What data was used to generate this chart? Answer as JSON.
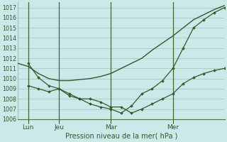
{
  "background_color": "#cce8e8",
  "grid_color": "#a0c0c0",
  "line_color": "#2a5e2a",
  "xlabel": "Pression niveau de la mer( hPa )",
  "ylim": [
    1006,
    1017.5
  ],
  "ytick_vals": [
    1006,
    1007,
    1008,
    1009,
    1010,
    1011,
    1012,
    1013,
    1014,
    1015,
    1016,
    1017
  ],
  "xlim": [
    0,
    20
  ],
  "x_tick_labels": [
    "Lun",
    "Jeu",
    "Mar",
    "Mer"
  ],
  "x_tick_positions": [
    1,
    4,
    9,
    15
  ],
  "x_vline_positions": [
    1,
    4,
    9,
    15
  ],
  "smooth_line_x": [
    0,
    1,
    2,
    3,
    4,
    5,
    6,
    7,
    8,
    9,
    10,
    11,
    12,
    13,
    14,
    15,
    16,
    17,
    18,
    19,
    20
  ],
  "smooth_line_y": [
    1011.5,
    1011.2,
    1010.5,
    1010.0,
    1009.8,
    1009.8,
    1009.9,
    1010.0,
    1010.2,
    1010.5,
    1011.0,
    1011.5,
    1012.0,
    1012.8,
    1013.5,
    1014.2,
    1015.0,
    1015.8,
    1016.3,
    1016.8,
    1017.2
  ],
  "line1_x": [
    1,
    2,
    3,
    4,
    5,
    6,
    7,
    8,
    9,
    10,
    11,
    12,
    13,
    14,
    15,
    16,
    17,
    18,
    19,
    20
  ],
  "line1_y": [
    1011.5,
    1010.1,
    1009.3,
    1009.0,
    1008.5,
    1008.0,
    1008.0,
    1007.7,
    1007.2,
    1007.2,
    1006.6,
    1007.0,
    1007.5,
    1008.0,
    1008.5,
    1009.5,
    1010.1,
    1010.5,
    1010.8,
    1011.0
  ],
  "line2_x": [
    1,
    2,
    3,
    4,
    5,
    6,
    7,
    8,
    9,
    10,
    11,
    12,
    13,
    14,
    15,
    16,
    17,
    18,
    19,
    20
  ],
  "line2_y": [
    1009.3,
    1009.0,
    1008.7,
    1009.0,
    1008.3,
    1008.0,
    1007.5,
    1007.2,
    1007.0,
    1006.6,
    1007.3,
    1008.5,
    1009.0,
    1009.8,
    1011.0,
    1013.0,
    1015.0,
    1015.8,
    1016.5,
    1017.0
  ]
}
